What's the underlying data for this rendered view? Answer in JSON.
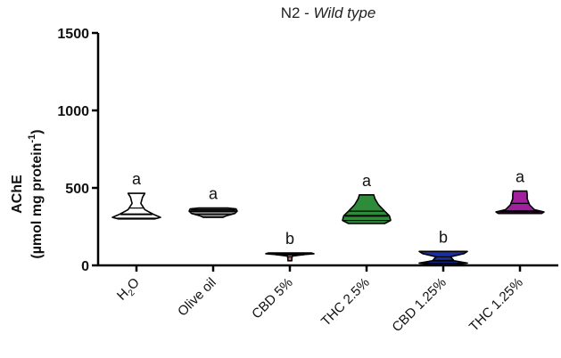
{
  "chart_data": {
    "type": "violin",
    "title_main": "N2 - ",
    "title_italic": "Wild type",
    "ylabel_line1": "AChE",
    "ylabel_line2_prefix": "(µmol mg protein",
    "ylabel_line2_sup": "-1",
    "ylabel_line2_suffix": ")",
    "ylim": [
      0,
      1500
    ],
    "yticks": [
      0,
      500,
      1000,
      1500
    ],
    "yticks_labels": [
      "0",
      "500",
      "1000",
      "1500"
    ],
    "categories": [
      {
        "label_main": "H",
        "label_sub": "2",
        "label_tail": "O",
        "full": "H2O",
        "fill": "#ffffff",
        "stroke": "#000000",
        "min": 300,
        "max": 465,
        "median": 330,
        "q1": 305,
        "q3": 370,
        "sig": "a",
        "profile": [
          [
            300,
            0.75
          ],
          [
            310,
            1.0
          ],
          [
            330,
            0.7
          ],
          [
            360,
            0.35
          ],
          [
            400,
            0.18
          ],
          [
            440,
            0.25
          ],
          [
            465,
            0.35
          ]
        ]
      },
      {
        "label_main": "Olive oil",
        "full": "Olive oil",
        "fill": "#7f7f7f",
        "stroke": "#000000",
        "min": 310,
        "max": 370,
        "median": 350,
        "q1": 330,
        "q3": 360,
        "sig": "a",
        "profile": [
          [
            310,
            0.4
          ],
          [
            320,
            0.55
          ],
          [
            335,
            0.9
          ],
          [
            350,
            1.0
          ],
          [
            365,
            0.95
          ],
          [
            370,
            0.6
          ]
        ]
      },
      {
        "label_main": "CBD 5%",
        "full": "CBD 5%",
        "fill": "#d96a6a",
        "stroke": "#000000",
        "min": 30,
        "max": 80,
        "median": 70,
        "q1": 55,
        "q3": 75,
        "sig": "b",
        "profile": [
          [
            30,
            0.08
          ],
          [
            45,
            0.08
          ],
          [
            60,
            0.1
          ],
          [
            70,
            0.6
          ],
          [
            75,
            1.0
          ],
          [
            80,
            0.9
          ]
        ]
      },
      {
        "label_main": "THC 2.5%",
        "full": "THC 2.5%",
        "fill": "#2e8b3a",
        "stroke": "#000000",
        "min": 270,
        "max": 455,
        "median": 320,
        "q1": 290,
        "q3": 350,
        "sig": "a",
        "profile": [
          [
            270,
            0.75
          ],
          [
            290,
            1.0
          ],
          [
            320,
            0.95
          ],
          [
            350,
            0.75
          ],
          [
            390,
            0.5
          ],
          [
            430,
            0.35
          ],
          [
            455,
            0.3
          ]
        ]
      },
      {
        "label_main": "CBD 1.25%",
        "full": "CBD 1.25%",
        "fill": "#1a2fa0",
        "stroke": "#000000",
        "min": 5,
        "max": 90,
        "median": 30,
        "q1": 15,
        "q3": 55,
        "sig": "b",
        "profile": [
          [
            5,
            0.55
          ],
          [
            15,
            1.0
          ],
          [
            30,
            0.45
          ],
          [
            55,
            0.3
          ],
          [
            75,
            0.85
          ],
          [
            90,
            1.0
          ]
        ]
      },
      {
        "label_main": "THC 1.25%",
        "full": "THC 1.25%",
        "fill": "#a020a0",
        "stroke": "#000000",
        "min": 335,
        "max": 480,
        "median": 350,
        "q1": 340,
        "q3": 400,
        "sig": "a",
        "profile": [
          [
            335,
            0.9
          ],
          [
            345,
            1.0
          ],
          [
            360,
            0.6
          ],
          [
            390,
            0.4
          ],
          [
            430,
            0.3
          ],
          [
            460,
            0.3
          ],
          [
            480,
            0.28
          ]
        ]
      }
    ]
  }
}
